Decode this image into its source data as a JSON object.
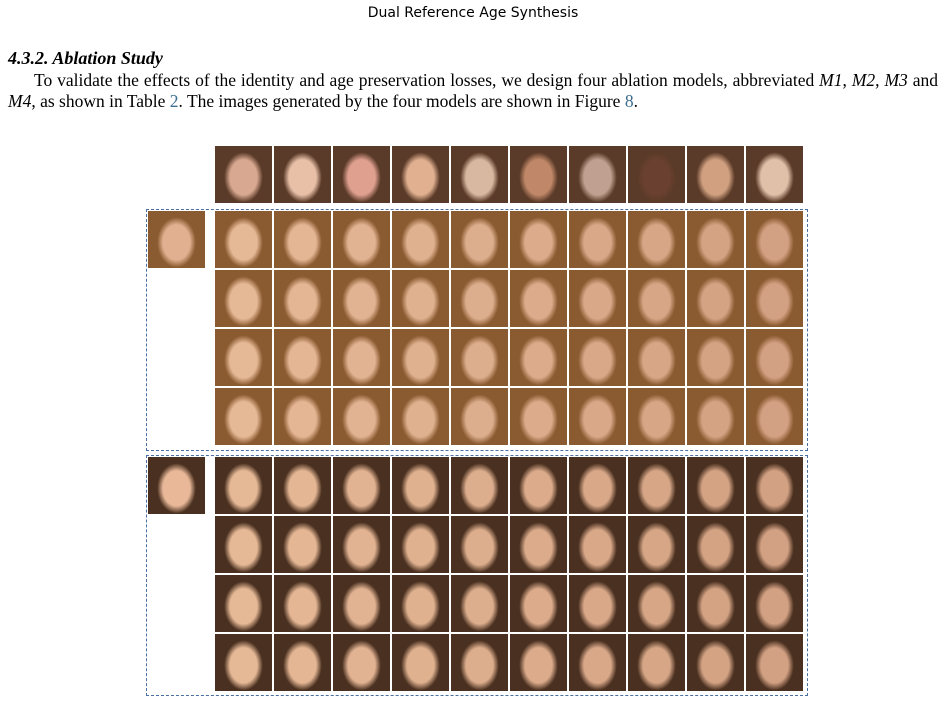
{
  "header": {
    "title": "Dual Reference Age Synthesis"
  },
  "section": {
    "heading": "4.3.2. Ablation Study",
    "paragraph": [
      "To validate the effects of the identity and age preservation losses, we design four ablation models, abbreviated ",
      "M1",
      ", ",
      "M2",
      ", ",
      "M3",
      " and ",
      "M4",
      ", as shown in Table ",
      "2",
      ". The images generated by the four models are shown in Figure ",
      "8",
      "."
    ]
  }
}
